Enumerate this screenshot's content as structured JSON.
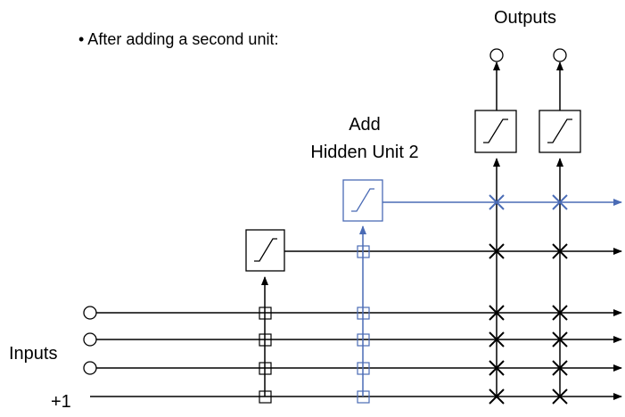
{
  "bullet_text": "• After adding a second unit:",
  "outputs_label": "Outputs",
  "add_label_line1": "Add",
  "add_label_line2": "Hidden Unit 2",
  "inputs_label": "Inputs",
  "bias_label": "+1",
  "colors": {
    "base": "#000000",
    "new_unit": "#4a6bb5"
  }
}
